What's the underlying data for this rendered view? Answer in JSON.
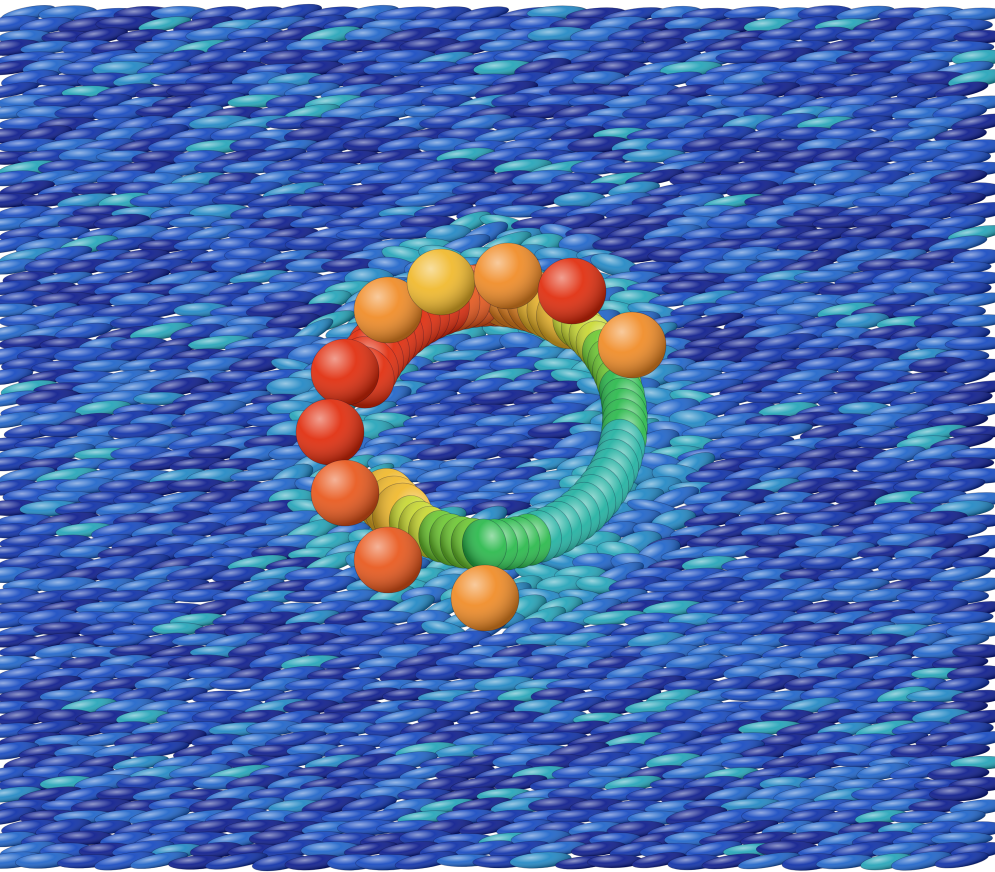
{
  "scene": {
    "subject": "liquid-crystal-director-field",
    "background_color": "#ffffff",
    "field_colors": [
      "#0a1a8c",
      "#0c2fa8",
      "#1448c0",
      "#1d63c9",
      "#1f86c4",
      "#22a3b8"
    ],
    "defect_ring_colors": [
      "#e02a0a",
      "#e8561a",
      "#f08a24",
      "#f0b82a",
      "#c8d830",
      "#6cc830",
      "#28b84a",
      "#20b0a0"
    ]
  }
}
